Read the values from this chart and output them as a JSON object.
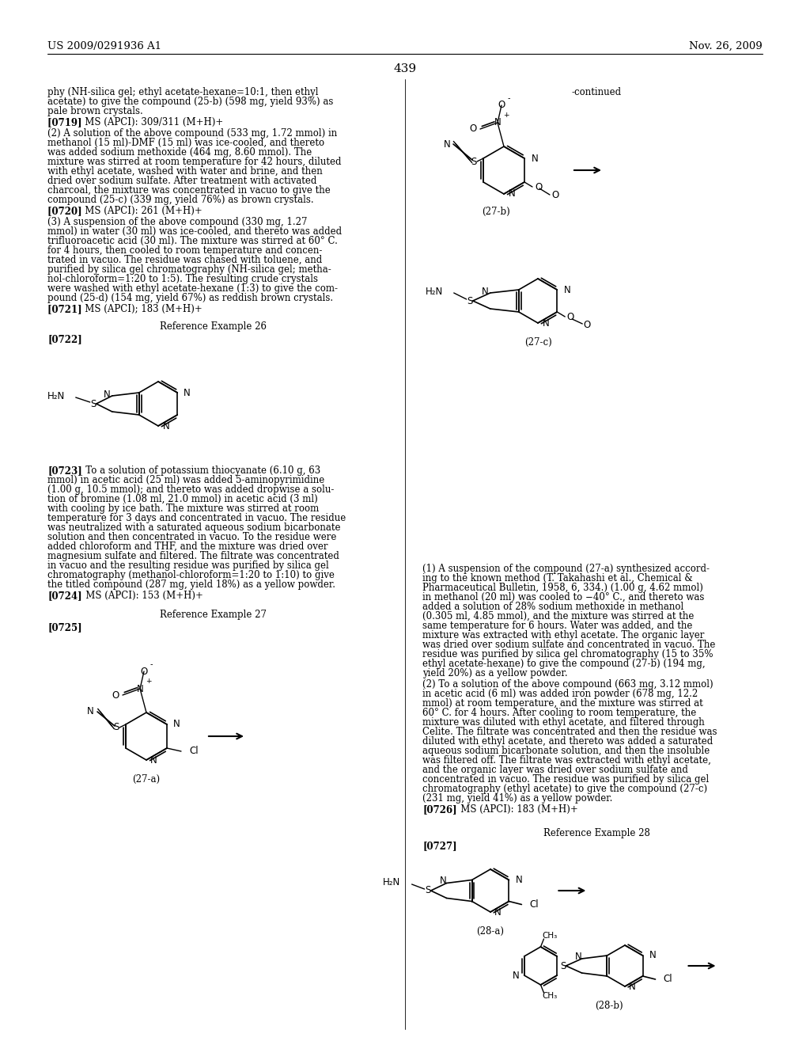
{
  "page_number": "439",
  "header_left": "US 2009/0291936 A1",
  "header_right": "Nov. 26, 2009",
  "background_color": "#ffffff",
  "text_color": "#000000",
  "figsize": [
    10.24,
    13.2
  ],
  "dpi": 100
}
